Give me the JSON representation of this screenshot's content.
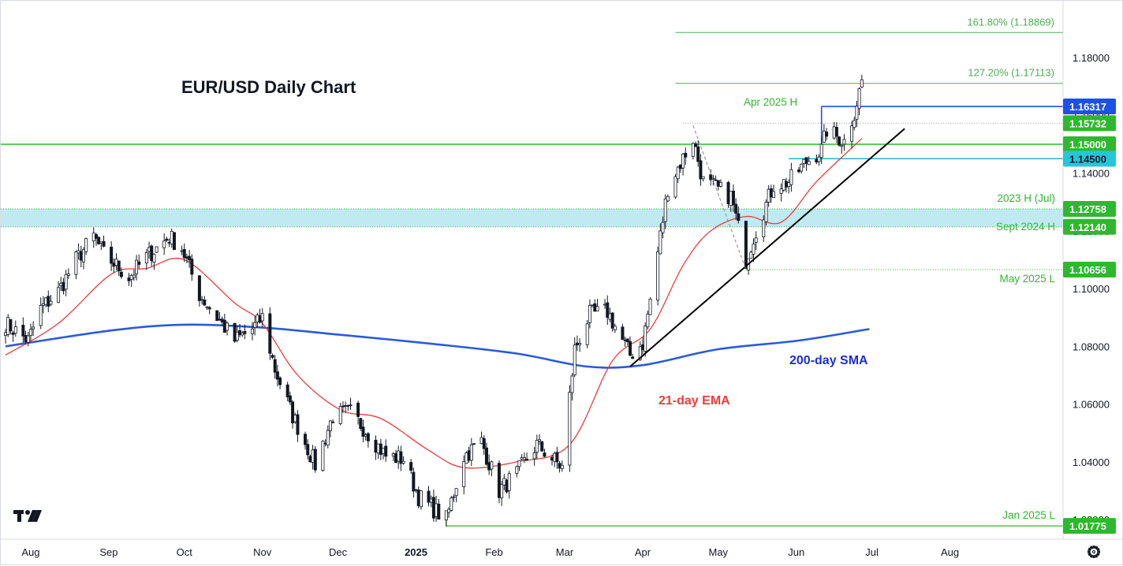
{
  "chart_data": {
    "type": "candlestick",
    "title": "EUR/USD Daily Chart",
    "colors": {
      "up_body": "#ffffff",
      "down_body": "#131722",
      "wick": "#131722",
      "ema": "#ef3b3b",
      "sma": "#2a5bd7",
      "green_level": "#2eb82e",
      "blue_level": "#1e50e6",
      "cyan_level": "#26a6b8",
      "support_zone": "#bfeaf2",
      "trendline": "#000000"
    },
    "y_axis": {
      "range": [
        1.0132,
        1.1997
      ],
      "ticks": [
        "1.18000",
        "1.16000",
        "1.14000",
        "1.12000",
        "1.10000",
        "1.08000",
        "1.06000",
        "1.04000",
        "1.02000"
      ]
    },
    "x_axis": {
      "ticks": [
        {
          "label": "Aug",
          "bold": false
        },
        {
          "label": "Sep",
          "bold": false
        },
        {
          "label": "Oct",
          "bold": false
        },
        {
          "label": "Nov",
          "bold": false
        },
        {
          "label": "Dec",
          "bold": false
        },
        {
          "label": "2025",
          "bold": true
        },
        {
          "label": "Feb",
          "bold": false
        },
        {
          "label": "Mar",
          "bold": false
        },
        {
          "label": "Apr",
          "bold": false
        },
        {
          "label": "May",
          "bold": false
        },
        {
          "label": "Jun",
          "bold": false
        },
        {
          "label": "Jul",
          "bold": false
        },
        {
          "label": "Aug",
          "bold": false
        }
      ]
    },
    "price_path": [
      {
        "date": "2024-07-22",
        "close": 1.088
      },
      {
        "date": "2024-07-31",
        "close": 1.082
      },
      {
        "date": "2024-08-05",
        "close": 1.093
      },
      {
        "date": "2024-08-12",
        "close": 1.099
      },
      {
        "date": "2024-08-19",
        "close": 1.11
      },
      {
        "date": "2024-08-26",
        "close": 1.118
      },
      {
        "date": "2024-08-30",
        "close": 1.112
      },
      {
        "date": "2024-09-09",
        "close": 1.104
      },
      {
        "date": "2024-09-16",
        "close": 1.111
      },
      {
        "date": "2024-09-25",
        "close": 1.118
      },
      {
        "date": "2024-09-30",
        "close": 1.114
      },
      {
        "date": "2024-10-07",
        "close": 1.098
      },
      {
        "date": "2024-10-14",
        "close": 1.09
      },
      {
        "date": "2024-10-21",
        "close": 1.082
      },
      {
        "date": "2024-10-28",
        "close": 1.086
      },
      {
        "date": "2024-11-01",
        "close": 1.09
      },
      {
        "date": "2024-11-06",
        "close": 1.072
      },
      {
        "date": "2024-11-13",
        "close": 1.056
      },
      {
        "date": "2024-11-22",
        "close": 1.039
      },
      {
        "date": "2024-11-29",
        "close": 1.056
      },
      {
        "date": "2024-12-06",
        "close": 1.057
      },
      {
        "date": "2024-12-13",
        "close": 1.05
      },
      {
        "date": "2024-12-20",
        "close": 1.042
      },
      {
        "date": "2024-12-27",
        "close": 1.041
      },
      {
        "date": "2025-01-02",
        "close": 1.028
      },
      {
        "date": "2025-01-13",
        "close": 1.02
      },
      {
        "date": "2025-01-20",
        "close": 1.042
      },
      {
        "date": "2025-01-27",
        "close": 1.047
      },
      {
        "date": "2025-02-03",
        "close": 1.03
      },
      {
        "date": "2025-02-10",
        "close": 1.036
      },
      {
        "date": "2025-02-18",
        "close": 1.046
      },
      {
        "date": "2025-02-28",
        "close": 1.038
      },
      {
        "date": "2025-03-05",
        "close": 1.079
      },
      {
        "date": "2025-03-11",
        "close": 1.091
      },
      {
        "date": "2025-03-18",
        "close": 1.092
      },
      {
        "date": "2025-03-27",
        "close": 1.077
      },
      {
        "date": "2025-04-01",
        "close": 1.081
      },
      {
        "date": "2025-04-04",
        "close": 1.096
      },
      {
        "date": "2025-04-11",
        "close": 1.135
      },
      {
        "date": "2025-04-21",
        "close": 1.152
      },
      {
        "date": "2025-04-25",
        "close": 1.137
      },
      {
        "date": "2025-05-06",
        "close": 1.132
      },
      {
        "date": "2025-05-12",
        "close": 1.11
      },
      {
        "date": "2025-05-15",
        "close": 1.118
      },
      {
        "date": "2025-05-23",
        "close": 1.136
      },
      {
        "date": "2025-05-29",
        "close": 1.137
      },
      {
        "date": "2025-06-05",
        "close": 1.144
      },
      {
        "date": "2025-06-11",
        "close": 1.148
      },
      {
        "date": "2025-06-13",
        "close": 1.155
      },
      {
        "date": "2025-06-20",
        "close": 1.151
      },
      {
        "date": "2025-06-24",
        "close": 1.161
      },
      {
        "date": "2025-06-27",
        "close": 1.172
      }
    ],
    "ema21_path": [
      {
        "date": "2024-07-22",
        "value": 1.077
      },
      {
        "date": "2024-08-12",
        "value": 1.088
      },
      {
        "date": "2024-09-02",
        "value": 1.105
      },
      {
        "date": "2024-09-16",
        "value": 1.107
      },
      {
        "date": "2024-10-01",
        "value": 1.11
      },
      {
        "date": "2024-10-21",
        "value": 1.095
      },
      {
        "date": "2024-11-01",
        "value": 1.088
      },
      {
        "date": "2024-11-15",
        "value": 1.07
      },
      {
        "date": "2024-12-02",
        "value": 1.058
      },
      {
        "date": "2024-12-18",
        "value": 1.055
      },
      {
        "date": "2025-01-06",
        "value": 1.044
      },
      {
        "date": "2025-01-20",
        "value": 1.038
      },
      {
        "date": "2025-02-10",
        "value": 1.04
      },
      {
        "date": "2025-03-03",
        "value": 1.046
      },
      {
        "date": "2025-03-20",
        "value": 1.075
      },
      {
        "date": "2025-04-04",
        "value": 1.086
      },
      {
        "date": "2025-04-17",
        "value": 1.108
      },
      {
        "date": "2025-04-28",
        "value": 1.12
      },
      {
        "date": "2025-05-12",
        "value": 1.125
      },
      {
        "date": "2025-05-26",
        "value": 1.123
      },
      {
        "date": "2025-06-09",
        "value": 1.137
      },
      {
        "date": "2025-06-27",
        "value": 1.152
      }
    ],
    "sma200_path": [
      {
        "date": "2024-07-22",
        "value": 1.08
      },
      {
        "date": "2024-09-02",
        "value": 1.0855
      },
      {
        "date": "2024-10-01",
        "value": 1.0875
      },
      {
        "date": "2024-11-01",
        "value": 1.0865
      },
      {
        "date": "2024-12-02",
        "value": 1.084
      },
      {
        "date": "2025-01-06",
        "value": 1.081
      },
      {
        "date": "2025-02-10",
        "value": 1.0775
      },
      {
        "date": "2025-03-10",
        "value": 1.073
      },
      {
        "date": "2025-04-01",
        "value": 1.0735
      },
      {
        "date": "2025-05-01",
        "value": 1.079
      },
      {
        "date": "2025-06-02",
        "value": 1.082
      },
      {
        "date": "2025-06-30",
        "value": 1.086
      }
    ],
    "horizontal_levels": [
      {
        "price": 1.1631,
        "label": "1.16317",
        "style": "blue"
      },
      {
        "price": 1.1573,
        "label": "1.15732",
        "style": "green-dotted"
      },
      {
        "price": 1.15,
        "label": "1.15000",
        "style": "green"
      },
      {
        "price": 1.145,
        "label": "1.14500",
        "style": "cyan"
      },
      {
        "price": 1.1276,
        "label": "1.12758",
        "style": "green-dotted"
      },
      {
        "price": 1.1214,
        "label": "1.12140",
        "style": "green-dotted"
      },
      {
        "price": 1.1066,
        "label": "1.10656",
        "style": "green-dotted"
      },
      {
        "price": 1.0178,
        "label": "1.01775",
        "style": "green"
      }
    ],
    "fibonacci": [
      {
        "label": "161.80% (1.18869)",
        "price": 1.1887
      },
      {
        "label": "127.20% (1.17113)",
        "price": 1.1711
      }
    ],
    "trendline": {
      "from": {
        "date": "2025-03-27",
        "price": 1.073
      },
      "to": {
        "date": "2025-07-14",
        "price": 1.1554
      }
    },
    "annotations": {
      "apr_high": "Apr 2025 H",
      "h2023": "2023 H (Jul)",
      "sept2024": "Sept 2024 H",
      "may_low": "May 2025 L",
      "jan_low": "Jan 2025 L",
      "ema_label": "21-day EMA",
      "sma_label": "200-day SMA"
    }
  },
  "ui": {
    "logo_icon": "tradingview-logo-icon",
    "settings_icon": "gear-icon"
  }
}
